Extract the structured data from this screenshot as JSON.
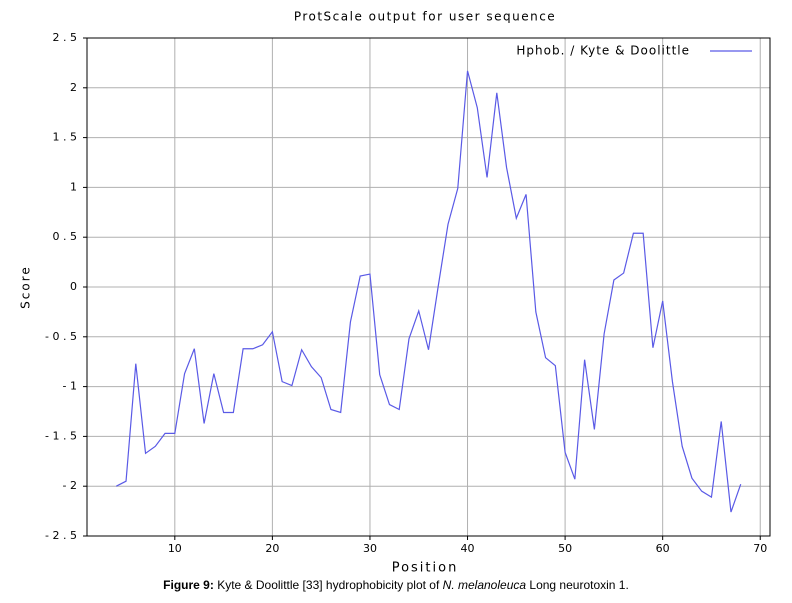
{
  "chart_data": {
    "type": "line",
    "title": "ProtScale output for user sequence",
    "xlabel": "Position",
    "ylabel": "Score",
    "x": [
      4,
      5,
      6,
      7,
      8,
      9,
      10,
      11,
      12,
      13,
      14,
      15,
      16,
      17,
      18,
      19,
      20,
      21,
      22,
      23,
      24,
      25,
      26,
      27,
      28,
      29,
      30,
      31,
      32,
      33,
      34,
      35,
      36,
      37,
      38,
      39,
      40,
      41,
      42,
      43,
      44,
      45,
      46,
      47,
      48,
      49,
      50,
      51,
      52,
      53,
      54,
      55,
      56,
      57,
      58,
      59,
      60,
      61,
      62,
      63,
      64,
      65,
      66,
      67,
      68
    ],
    "series": [
      {
        "name": "Hphob. / Kyte & Doolittle",
        "color": "#5a5ae6",
        "values": [
          -2.0,
          -1.95,
          -0.77,
          -1.67,
          -1.6,
          -1.47,
          -1.47,
          -0.87,
          -0.62,
          -1.37,
          -0.87,
          -1.26,
          -1.26,
          -0.62,
          -0.62,
          -0.58,
          -0.45,
          -0.95,
          -0.99,
          -0.63,
          -0.8,
          -0.91,
          -1.23,
          -1.26,
          -0.35,
          0.11,
          0.13,
          -0.88,
          -1.18,
          -1.23,
          -0.52,
          -0.24,
          -0.63,
          0.01,
          0.63,
          0.99,
          2.17,
          1.8,
          1.1,
          1.95,
          1.2,
          0.69,
          0.93,
          -0.25,
          -0.71,
          -0.79,
          -1.66,
          -1.93,
          -0.73,
          -1.43,
          -0.47,
          0.07,
          0.14,
          0.54,
          0.54,
          -0.61,
          -0.14,
          -0.95,
          -1.6,
          -1.92,
          -2.05,
          -2.11,
          -1.35,
          -2.26,
          -1.98
        ]
      }
    ],
    "xlim": [
      1,
      71
    ],
    "xticks": [
      10,
      20,
      30,
      40,
      50,
      60,
      70
    ],
    "ylim": [
      -2.5,
      2.5
    ],
    "yticks": [
      {
        "value": 2.5,
        "label": "2 . 5"
      },
      2,
      {
        "value": 1.5,
        "label": "1 . 5"
      },
      1,
      {
        "value": 0.5,
        "label": "0 . 5"
      },
      0,
      {
        "value": -0.5,
        "label": "- 0 . 5"
      },
      {
        "value": -1,
        "label": "- 1"
      },
      {
        "value": -1.5,
        "label": "- 1 . 5"
      },
      {
        "value": -2,
        "label": "- 2"
      },
      {
        "value": -2.5,
        "label": "- 2 . 5"
      }
    ],
    "grid": true,
    "legend": "upper right",
    "caption": {
      "label": "Figure 9:",
      "text": "Kyte & Doolittle [33] hydrophobicity plot of",
      "italic": "N. melanoleuca",
      "rest": "Long neurotoxin 1."
    }
  }
}
